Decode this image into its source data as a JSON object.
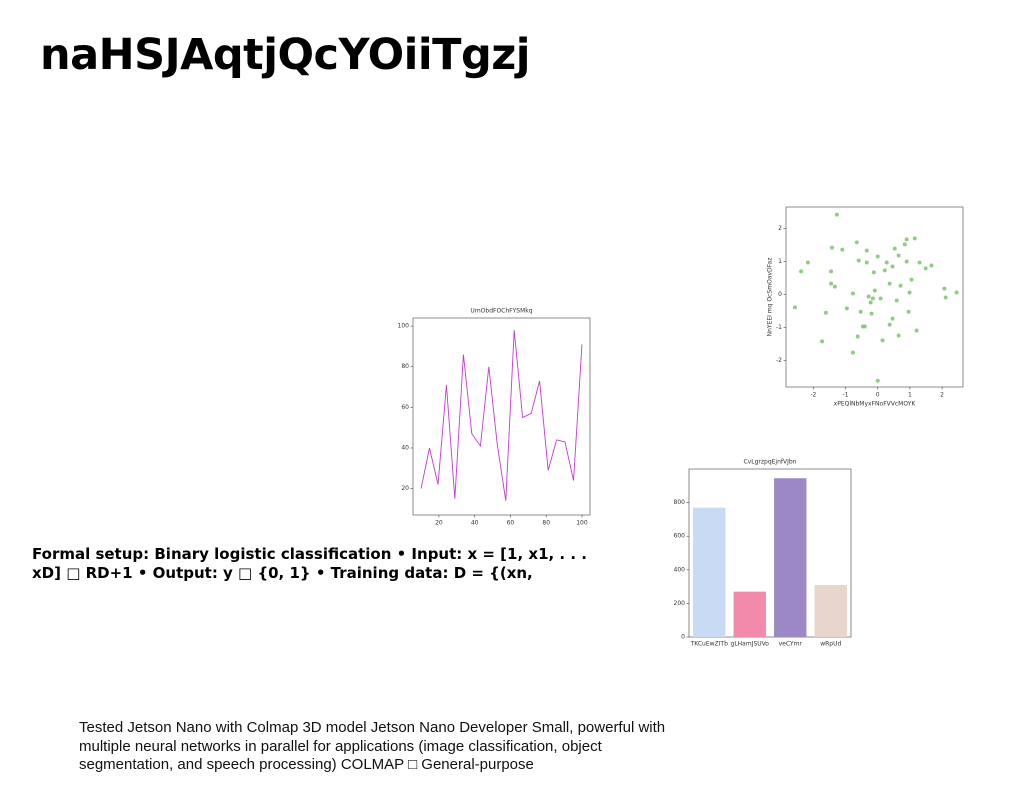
{
  "title": "naHSJAqtjQcYOiiTgzj",
  "paragraph1": "Formal setup: Binary logistic classification • Input: x = [1, x1, . . . xD] □ RD+1 • Output: y □ {0, 1} • Training data: D = {(xn,",
  "paragraph2": "Tested Jetson Nano with Colmap 3D model Jetson Nano Developer Small, powerful with multiple neural networks in parallel for applications (image classification, object segmentation, and speech processing) COLMAP □ General-purpose",
  "chart_data": [
    {
      "type": "line",
      "title": "UmObdFOChFYSMkq",
      "color": "#c03ccf",
      "x": [
        10,
        14.7,
        19.5,
        24.2,
        28.9,
        33.7,
        38.4,
        43.2,
        47.9,
        52.6,
        57.4,
        62.1,
        66.8,
        71.6,
        76.3,
        81.1,
        85.8,
        90.5,
        95.3,
        100
      ],
      "values": [
        20,
        40,
        22,
        71,
        15,
        86,
        47,
        41,
        80,
        42,
        14,
        98,
        55,
        57,
        73,
        29,
        44,
        43,
        24,
        91
      ],
      "xlim": [
        5.5,
        104.5
      ],
      "ylim": [
        7,
        104
      ],
      "xticks": [
        20,
        40,
        60,
        80,
        100
      ],
      "yticks": [
        20,
        40,
        60,
        80,
        100
      ]
    },
    {
      "type": "scatter",
      "color": "#7cc36e",
      "xlabel": "xPEQlNbMyxFNoFVVcMOYK",
      "ylabel": "NnYEEI mq OcSmOavDFaz",
      "x": [
        -1.27,
        -2.17,
        -2.38,
        -2.57,
        -1.42,
        -1.1,
        -1.45,
        -1.45,
        -1.33,
        -1.61,
        -1.73,
        -0.96,
        -0.65,
        -0.59,
        -0.34,
        -0.34,
        -0.77,
        -0.77,
        -0.62,
        -0.53,
        -0.4,
        -0.28,
        -0.22,
        -0.15,
        -0.19,
        -0.09,
        -0.12,
        0,
        0,
        0.09,
        0.15,
        0.22,
        0.28,
        0.37,
        0.37,
        0.46,
        0.53,
        0.59,
        0.65,
        0.71,
        0.84,
        0.9,
        0.9,
        0.96,
        0.99,
        1.05,
        1.15,
        1.21,
        1.3,
        1.49,
        1.67,
        2.07,
        2.11,
        2.45,
        0.65,
        0.46,
        -0.46
      ],
      "values": [
        2.42,
        0.97,
        0.7,
        -0.39,
        1.42,
        1.36,
        0.7,
        0.33,
        0.24,
        -0.55,
        -1.42,
        -0.42,
        1.58,
        1.03,
        1.33,
        0.97,
        0.03,
        -1.76,
        -1.27,
        -0.52,
        -0.97,
        -0.06,
        -0.24,
        -0.12,
        -0.58,
        0.12,
        0.67,
        1.15,
        -2.61,
        -0.12,
        -1.39,
        0.73,
        0.97,
        0.33,
        -0.91,
        0.85,
        1.39,
        -0.18,
        1.18,
        0.27,
        1.52,
        1.0,
        1.67,
        -0.52,
        0.06,
        0.45,
        1.7,
        -1.09,
        0.97,
        0.79,
        0.88,
        0.18,
        -0.09,
        0.06,
        -1.24,
        -0.73,
        -0.97
      ],
      "xlim": [
        -2.85,
        2.65
      ],
      "ylim": [
        -2.8,
        2.65
      ],
      "xticks": [
        -2,
        -1,
        0,
        1,
        2
      ],
      "yticks": [
        -2,
        -1,
        0,
        1,
        2
      ]
    },
    {
      "type": "bar",
      "title": "CvLgrzpqEjnfVJbn",
      "categories": [
        "TKCuEwZITb",
        "gLHamJSUVo",
        "veCYmr",
        "wRpUd"
      ],
      "values": [
        770,
        270,
        945,
        310
      ],
      "colors": [
        "#c9daf5",
        "#f28bab",
        "#9b88c4",
        "#e8d5cc"
      ],
      "ylim": [
        0,
        1000
      ],
      "yticks": [
        0,
        200,
        400,
        600,
        800
      ]
    }
  ]
}
